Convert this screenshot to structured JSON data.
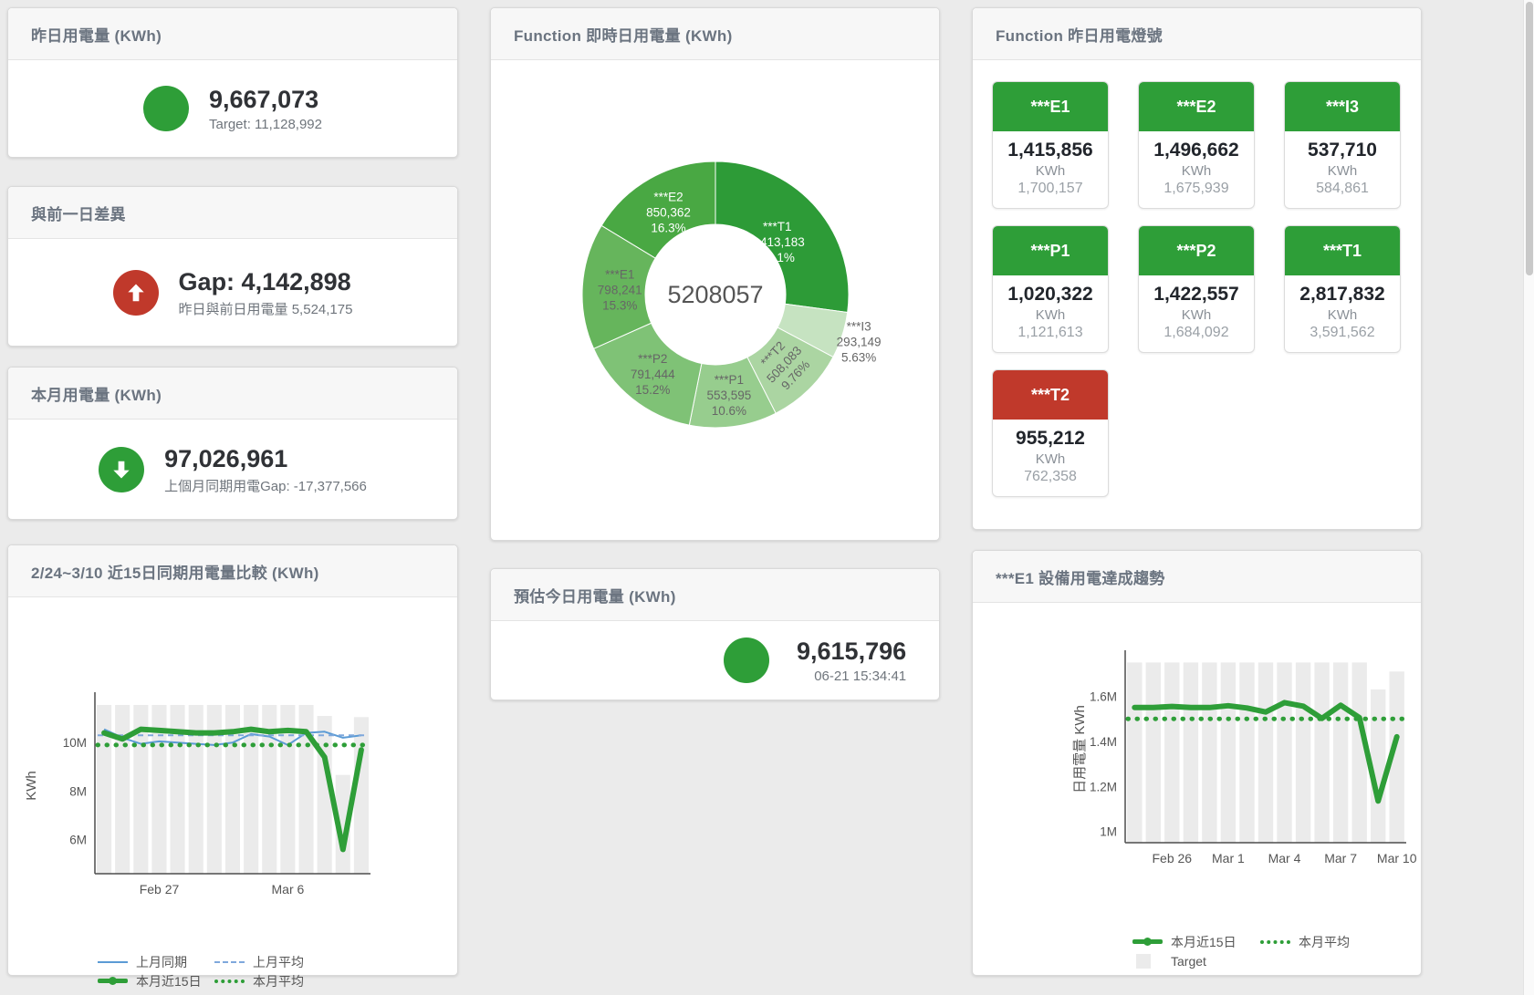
{
  "colors": {
    "green": "#2e9e38",
    "red": "#c0392b",
    "blue": "#5b9bd5",
    "bar_gray": "#ebebeb"
  },
  "cards": {
    "yesterday": {
      "title": "昨日用電量 (KWh)",
      "value": "9,667,073",
      "subtext": "Target: 11,128,992",
      "indicator": "circle",
      "indicator_color": "#2e9e38"
    },
    "day_gap": {
      "title": "與前一日差異",
      "value": "Gap: 4,142,898",
      "subtext": "昨日與前日用電量 5,524,175",
      "indicator": "arrow-up",
      "indicator_color": "#c0392b"
    },
    "month": {
      "title": "本月用電量 (KWh)",
      "value": "97,026,961",
      "subtext": "上個月同期用電Gap: -17,377,566",
      "indicator": "arrow-down",
      "indicator_color": "#2e9e38"
    },
    "realtime": {
      "title": "Function 即時日用電量 (KWh)"
    },
    "estimate": {
      "title": "預估今日用電量 (KWh)",
      "value": "9,615,796",
      "subtext": "06-21 15:34:41",
      "indicator": "circle",
      "indicator_color": "#2e9e38"
    },
    "compare": {
      "title": "2/24~3/10 近15日同期用電量比較 (KWh)"
    },
    "trend": {
      "title": "***E1 設備用電達成趨勢"
    },
    "lights": {
      "title": "Function 昨日用電燈號",
      "tiles": [
        {
          "label": "***E1",
          "value": "1,415,856",
          "unit": "KWh",
          "target": "1,700,157",
          "status": "green",
          "header_color": "#2e9e38"
        },
        {
          "label": "***E2",
          "value": "1,496,662",
          "unit": "KWh",
          "target": "1,675,939",
          "status": "green",
          "header_color": "#2e9e38"
        },
        {
          "label": "***I3",
          "value": "537,710",
          "unit": "KWh",
          "target": "584,861",
          "status": "green",
          "header_color": "#2e9e38"
        },
        {
          "label": "***P1",
          "value": "1,020,322",
          "unit": "KWh",
          "target": "1,121,613",
          "status": "green",
          "header_color": "#2e9e38"
        },
        {
          "label": "***P2",
          "value": "1,422,557",
          "unit": "KWh",
          "target": "1,684,092",
          "status": "green",
          "header_color": "#2e9e38"
        },
        {
          "label": "***T1",
          "value": "2,817,832",
          "unit": "KWh",
          "target": "3,591,562",
          "status": "green",
          "header_color": "#2e9e38"
        },
        {
          "label": "***T2",
          "value": "955,212",
          "unit": "KWh",
          "target": "762,358",
          "status": "red",
          "header_color": "#c0392b"
        }
      ]
    }
  },
  "chart_data": [
    {
      "type": "pie",
      "title": "Function 即時日用電量 (KWh)",
      "center_label": "5208057",
      "slices": [
        {
          "name": "***T1",
          "value": 1413183,
          "value_label": "1,413,183",
          "pct_label": "27.1%",
          "color": "#2d9b37",
          "label_color": "#ffffff",
          "label_pos": "inside",
          "label_r": 90
        },
        {
          "name": "***I3",
          "value": 293149,
          "value_label": "293,149",
          "pct_label": "5.63%",
          "color": "#c6e3c1",
          "label_color": "#666666",
          "label_pos": "outside",
          "label_r": 165
        },
        {
          "name": "***T2",
          "value": 508083,
          "value_label": "508,083",
          "pct_label": "9.76%",
          "color": "#abd5a2",
          "label_color": "#666666",
          "label_pos": "inside",
          "label_r": 106,
          "label_rotate": -47
        },
        {
          "name": "***P1",
          "value": 553595,
          "value_label": "553,595",
          "pct_label": "10.6%",
          "color": "#97cd8e",
          "label_color": "#666666",
          "label_pos": "inside",
          "label_r": 110
        },
        {
          "name": "***P2",
          "value": 791444,
          "value_label": "791,444",
          "pct_label": "15.2%",
          "color": "#7fc276",
          "label_color": "#666666",
          "label_pos": "inside",
          "label_r": 110
        },
        {
          "name": "***E1",
          "value": 798241,
          "value_label": "798,241",
          "pct_label": "15.3%",
          "color": "#66b55c",
          "label_color": "#666666",
          "label_pos": "inside",
          "label_r": 105
        },
        {
          "name": "***E2",
          "value": 850362,
          "value_label": "850,362",
          "pct_label": "16.3%",
          "color": "#49a843",
          "label_color": "#ffffff",
          "label_pos": "inside",
          "label_r": 105
        }
      ]
    },
    {
      "type": "combo",
      "title": "2/24~3/10 近15日同期用電量比較 (KWh)",
      "ylabel": "KWh",
      "categories": [
        "2/24",
        "2/25",
        "2/26",
        "2/27",
        "2/28",
        "3/1",
        "3/2",
        "3/3",
        "3/4",
        "3/5",
        "3/6",
        "3/7",
        "3/8",
        "3/9",
        "3/10"
      ],
      "ylim": [
        4600000,
        11850000
      ],
      "yticks": [
        {
          "value": 6000000,
          "label": "6M"
        },
        {
          "value": 8000000,
          "label": "8M"
        },
        {
          "value": 10000000,
          "label": "10M"
        }
      ],
      "xticks": [
        {
          "index": 3,
          "label": "Feb 27"
        },
        {
          "index": 10,
          "label": "Mar 6"
        }
      ],
      "grid": false,
      "legend_position": "bottom",
      "series": [
        {
          "name": "Target",
          "type": "bar",
          "color": "#ebebeb",
          "values": [
            11550000,
            11550000,
            11550000,
            11550000,
            11550000,
            11550000,
            11550000,
            11550000,
            11550000,
            11550000,
            11550000,
            11550000,
            11100000,
            8670000,
            11050000
          ]
        },
        {
          "name": "上月同期",
          "type": "line",
          "color": "#5b9bd5",
          "width": 2,
          "values": [
            10550000,
            10200000,
            9950000,
            10050000,
            10000000,
            9950000,
            9900000,
            10000000,
            10350000,
            10250000,
            9900000,
            10400000,
            10450000,
            10200000,
            10300000
          ]
        },
        {
          "name": "上月平均",
          "type": "line",
          "color": "#7fa8dc",
          "width": 2,
          "dash": "6 5",
          "constant": 10300000
        },
        {
          "name": "本月近15日",
          "type": "line",
          "color": "#2e9e38",
          "width": 6,
          "values": [
            10400000,
            10150000,
            10550000,
            10500000,
            10450000,
            10400000,
            10400000,
            10450000,
            10550000,
            10450000,
            10500000,
            10450000,
            9400000,
            5600000,
            9700000
          ]
        },
        {
          "name": "本月平均",
          "type": "line",
          "color": "#2e9e38",
          "width": 5,
          "dash": "0.5 9.5",
          "linecap": "round",
          "constant": 9900000
        }
      ],
      "legend": [
        {
          "label": "上月同期"
        },
        {
          "label": "上月平均"
        },
        {
          "label": "本月近15日"
        },
        {
          "label": "本月平均"
        },
        {
          "label": "Target"
        }
      ]
    },
    {
      "type": "combo",
      "title": "***E1 設備用電達成趨勢",
      "ylabel": "日用電量 KWh",
      "categories": [
        "2/24",
        "2/25",
        "2/26",
        "2/27",
        "2/28",
        "3/1",
        "3/2",
        "3/3",
        "3/4",
        "3/5",
        "3/6",
        "3/7",
        "3/8",
        "3/9",
        "3/10"
      ],
      "ylim": [
        950000,
        1780000
      ],
      "yticks": [
        {
          "value": 1000000,
          "label": "1M"
        },
        {
          "value": 1200000,
          "label": "1.2M"
        },
        {
          "value": 1400000,
          "label": "1.4M"
        },
        {
          "value": 1600000,
          "label": "1.6M"
        }
      ],
      "xticks": [
        {
          "index": 2,
          "label": "Feb 26"
        },
        {
          "index": 5,
          "label": "Mar 1"
        },
        {
          "index": 8,
          "label": "Mar 4"
        },
        {
          "index": 11,
          "label": "Mar 7"
        },
        {
          "index": 14,
          "label": "Mar 10"
        }
      ],
      "grid": false,
      "legend_position": "bottom",
      "series": [
        {
          "name": "Target",
          "type": "bar",
          "color": "#ebebeb",
          "values": [
            1750000,
            1750000,
            1750000,
            1750000,
            1750000,
            1750000,
            1750000,
            1750000,
            1750000,
            1750000,
            1750000,
            1750000,
            1750000,
            1630000,
            1710000
          ]
        },
        {
          "name": "本月近15日",
          "type": "line",
          "color": "#2e9e38",
          "width": 6,
          "values": [
            1550000,
            1550000,
            1555000,
            1550000,
            1550000,
            1558000,
            1548000,
            1530000,
            1572000,
            1556000,
            1502000,
            1560000,
            1505000,
            1135000,
            1420000
          ]
        },
        {
          "name": "本月平均",
          "type": "line",
          "color": "#2e9e38",
          "width": 5,
          "dash": "0.5 9.5",
          "linecap": "round",
          "constant": 1500000
        }
      ],
      "legend": [
        {
          "label": "本月近15日"
        },
        {
          "label": "本月平均"
        },
        {
          "label": "Target"
        }
      ]
    }
  ]
}
